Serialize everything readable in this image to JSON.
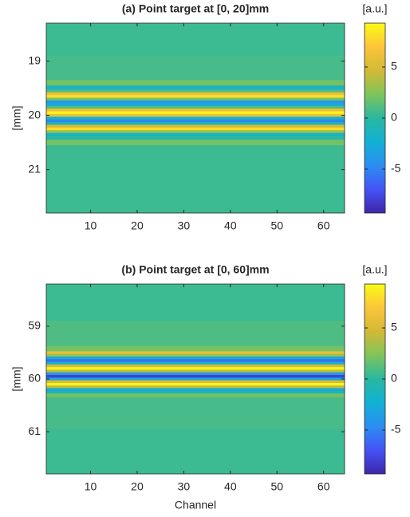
{
  "chart_data": [
    {
      "type": "heatmap",
      "title": "(a) Point target at [0, 20]mm",
      "ylabel": "[mm]",
      "colorbar_label": "[a.u.]",
      "xlim": [
        0.5,
        64.5
      ],
      "xticks": [
        10,
        20,
        30,
        40,
        50,
        60
      ],
      "ylim": [
        18.3,
        21.8
      ],
      "yticks": [
        19,
        20,
        21
      ],
      "clim": [
        -9.3,
        9.3
      ],
      "cticks": [
        -5,
        0,
        5
      ],
      "colormap": [
        "#3e26a8",
        "#4553f5",
        "#2c8ef2",
        "#12b1d4",
        "#2ab7a0",
        "#7fc45c",
        "#d3b935",
        "#fcc53b",
        "#f9fb15"
      ],
      "y": [
        18.5,
        19.3,
        19.4,
        19.5,
        19.55,
        19.6,
        19.65,
        19.7,
        19.75,
        19.8,
        19.85,
        19.9,
        19.95,
        20.0,
        20.05,
        20.1,
        20.15,
        20.2,
        20.25,
        20.3,
        20.35,
        20.4,
        20.5,
        20.6,
        21.5
      ],
      "values": [
        0.5,
        0.8,
        2,
        -1.5,
        1,
        6,
        8,
        2,
        -4,
        -3,
        1,
        6,
        9,
        6,
        -2,
        -5,
        -1,
        5,
        8,
        3,
        -2,
        0,
        2,
        0.5,
        0.5
      ]
    },
    {
      "type": "heatmap",
      "title": "(b) Point target at [0, 60]mm",
      "ylabel": "[mm]",
      "xlabel": "Channel",
      "colorbar_label": "[a.u.]",
      "xlim": [
        0.5,
        64.5
      ],
      "xticks": [
        10,
        20,
        30,
        40,
        50,
        60
      ],
      "ylim": [
        58.2,
        61.8
      ],
      "yticks": [
        59,
        60,
        61
      ],
      "clim": [
        -9.3,
        9.3
      ],
      "cticks": [
        -5,
        0,
        5
      ],
      "colormap": [
        "#3e26a8",
        "#4553f5",
        "#2c8ef2",
        "#12b1d4",
        "#2ab7a0",
        "#7fc45c",
        "#d3b935",
        "#fcc53b",
        "#f9fb15"
      ],
      "y": [
        58.5,
        59.3,
        59.45,
        59.5,
        59.55,
        59.6,
        59.65,
        59.7,
        59.75,
        59.8,
        59.85,
        59.9,
        59.95,
        60.0,
        60.05,
        60.1,
        60.15,
        60.2,
        60.25,
        60.3,
        60.4,
        61.5
      ],
      "values": [
        0.5,
        1,
        2,
        6,
        3,
        -3,
        -6,
        -2,
        5,
        9,
        4,
        -4,
        -8,
        -3,
        5,
        9,
        4,
        -3,
        -1,
        2,
        0.8,
        0.5
      ]
    }
  ]
}
